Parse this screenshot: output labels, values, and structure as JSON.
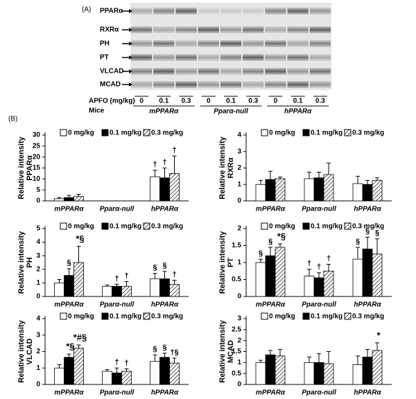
{
  "panel_labels": [
    "(A)",
    "(B)"
  ],
  "blot": {
    "proteins": [
      "PPARα",
      "RXRα",
      "PH",
      "PT",
      "VLCAD",
      "MCAD"
    ],
    "dose_label": "APFO (mg/kg)",
    "doses": [
      "0",
      "0.1",
      "0.3"
    ],
    "mice_label": "Mice",
    "genotypes": [
      "mPPARα",
      "Pparα-null",
      "hPPARα"
    ]
  },
  "chart_data": [
    {
      "type": "bar",
      "ylabel": [
        "Relative intensity",
        "PPARα"
      ],
      "categories": [
        "mPPARα",
        "Pparα-null",
        "hPPARα"
      ],
      "ylim": [
        0,
        30
      ],
      "yticks": [
        0,
        5,
        10,
        15,
        20,
        25,
        30
      ],
      "series": [
        {
          "name": "0 mg/kg",
          "color": "#ffffff",
          "values": [
            1.0,
            0,
            11
          ],
          "errors": [
            0.5,
            0,
            3
          ],
          "annotations": [
            null,
            null,
            "†"
          ]
        },
        {
          "name": "0.1 mg/kg",
          "color": "#000000",
          "values": [
            1.5,
            0,
            10.5
          ],
          "errors": [
            1.0,
            0,
            4.5
          ],
          "annotations": [
            null,
            null,
            "†"
          ]
        },
        {
          "name": "0.3 mg/kg",
          "color": "#888888",
          "pattern": "hatch",
          "values": [
            2.0,
            0,
            12.5
          ],
          "errors": [
            1.0,
            0,
            8
          ],
          "annotations": [
            null,
            null,
            "†"
          ]
        }
      ]
    },
    {
      "type": "bar",
      "ylabel": [
        "Relative intensity",
        "RXRα"
      ],
      "categories": [
        "mPPARα",
        "Pparα-null",
        "hPPARα"
      ],
      "ylim": [
        0,
        4
      ],
      "yticks": [
        0,
        1,
        2,
        3,
        4
      ],
      "series": [
        {
          "name": "0 mg/kg",
          "color": "#ffffff",
          "values": [
            1.0,
            1.35,
            1.05
          ],
          "errors": [
            0.25,
            0.4,
            0.45
          ]
        },
        {
          "name": "0.1 mg/kg",
          "color": "#000000",
          "values": [
            1.3,
            1.4,
            1.0
          ],
          "errors": [
            0.5,
            0.35,
            0.25
          ]
        },
        {
          "name": "0.3 mg/kg",
          "color": "#888888",
          "pattern": "hatch",
          "values": [
            1.35,
            1.6,
            1.25
          ],
          "errors": [
            0.1,
            0.7,
            0.15
          ]
        }
      ]
    },
    {
      "type": "bar",
      "ylabel": [
        "Relative intensity",
        "PH"
      ],
      "categories": [
        "mPPARα",
        "Pparα-null",
        "hPPARα"
      ],
      "ylim": [
        0,
        5
      ],
      "yticks": [
        0,
        1,
        2,
        3,
        4,
        5
      ],
      "series": [
        {
          "name": "0 mg/kg",
          "color": "#ffffff",
          "values": [
            1.0,
            0.75,
            1.3
          ],
          "errors": [
            0.25,
            0.1,
            0.4
          ],
          "annotations": [
            null,
            null,
            "§"
          ]
        },
        {
          "name": "0.1 mg/kg",
          "color": "#000000",
          "values": [
            1.55,
            0.75,
            1.3
          ],
          "errors": [
            0.5,
            0.15,
            0.55
          ],
          "annotations": [
            "§",
            "†",
            "§"
          ]
        },
        {
          "name": "0.3 mg/kg",
          "color": "#888888",
          "pattern": "hatch",
          "values": [
            2.5,
            0.75,
            0.9
          ],
          "errors": [
            1.2,
            0.35,
            0.3
          ],
          "annotations": [
            "*§",
            "†",
            "†"
          ]
        }
      ]
    },
    {
      "type": "bar",
      "ylabel": [
        "Relative intensity",
        "PT"
      ],
      "categories": [
        "mPPARα",
        "Pparα-null",
        "hPPARα"
      ],
      "ylim": [
        0,
        2
      ],
      "yticks": [
        0,
        0.5,
        1,
        1.5,
        2
      ],
      "series": [
        {
          "name": "0 mg/kg",
          "color": "#ffffff",
          "values": [
            1.0,
            0.6,
            1.1
          ],
          "errors": [
            0.1,
            0.2,
            0.35
          ],
          "annotations": [
            "§",
            "†",
            "§"
          ]
        },
        {
          "name": "0.1 mg/kg",
          "color": "#000000",
          "values": [
            1.2,
            0.55,
            1.4
          ],
          "errors": [
            0.25,
            0.15,
            0.35
          ],
          "annotations": [
            "§",
            "†",
            "§"
          ]
        },
        {
          "name": "0.3 mg/kg",
          "color": "#888888",
          "pattern": "hatch",
          "values": [
            1.45,
            0.75,
            1.25
          ],
          "errors": [
            0.1,
            0.2,
            0.45
          ],
          "annotations": [
            "*§",
            "†",
            "§"
          ]
        }
      ]
    },
    {
      "type": "bar",
      "ylabel": [
        "Relative intensity",
        "VLCAD"
      ],
      "categories": [
        "mPPARα",
        "Pparα-null",
        "hPPARα"
      ],
      "ylim": [
        0,
        4
      ],
      "yticks": [
        0,
        1,
        2,
        3,
        4
      ],
      "series": [
        {
          "name": "0 mg/kg",
          "color": "#ffffff",
          "values": [
            1.0,
            0.8,
            1.4
          ],
          "errors": [
            0.2,
            0.1,
            0.4
          ],
          "annotations": [
            null,
            null,
            "§"
          ]
        },
        {
          "name": "0.1 mg/kg",
          "color": "#000000",
          "values": [
            1.65,
            0.7,
            1.65
          ],
          "errors": [
            0.2,
            0.3,
            0.25
          ],
          "annotations": [
            "*§",
            "†",
            "§"
          ]
        },
        {
          "name": "0.3 mg/kg",
          "color": "#888888",
          "pattern": "hatch",
          "values": [
            2.2,
            0.8,
            1.3
          ],
          "errors": [
            0.2,
            0.15,
            0.3
          ],
          "annotations": [
            "*#§",
            "†",
            "†§"
          ]
        }
      ]
    },
    {
      "type": "bar",
      "ylabel": [
        "Relative intensity",
        "MCAD"
      ],
      "categories": [
        "mPPARα",
        "Pparα-null",
        "hPPARα"
      ],
      "ylim": [
        0,
        3
      ],
      "yticks": [
        0,
        0.5,
        1,
        1.5,
        2,
        2.5,
        3
      ],
      "series": [
        {
          "name": "0 mg/kg",
          "color": "#ffffff",
          "values": [
            1.0,
            1.0,
            0.9
          ],
          "errors": [
            0.1,
            0.25,
            0.4
          ]
        },
        {
          "name": "0.1 mg/kg",
          "color": "#000000",
          "values": [
            1.35,
            1.0,
            1.25
          ],
          "errors": [
            0.2,
            0.4,
            0.35
          ]
        },
        {
          "name": "0.3 mg/kg",
          "color": "#888888",
          "pattern": "hatch",
          "values": [
            1.3,
            0.95,
            1.55
          ],
          "errors": [
            0.3,
            0.55,
            0.35
          ],
          "annotations": [
            null,
            null,
            "*"
          ]
        }
      ]
    }
  ]
}
